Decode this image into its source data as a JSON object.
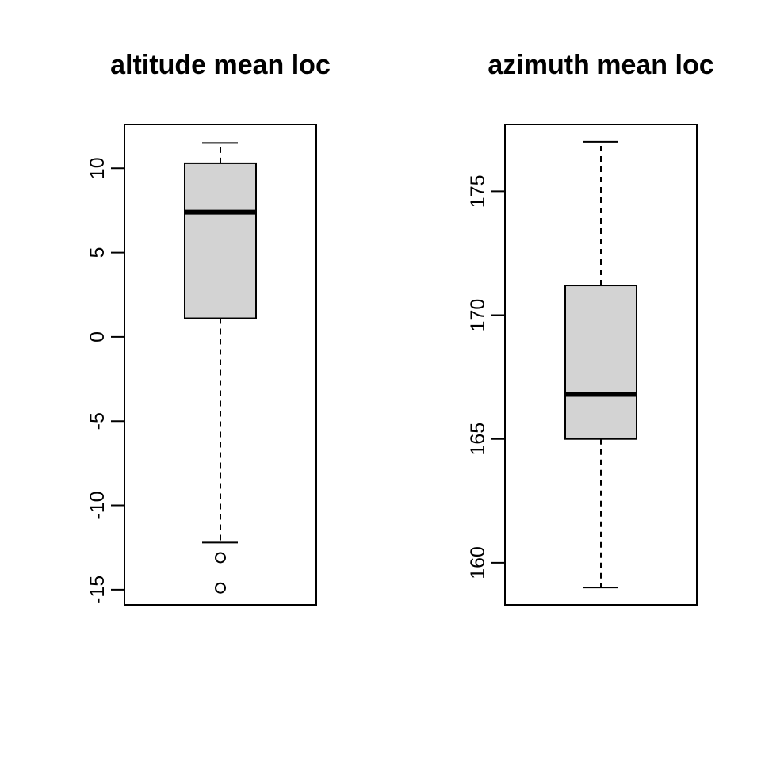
{
  "colors": {
    "box_fill": "#d3d3d3",
    "stroke": "#000000",
    "background": "#ffffff"
  },
  "chart_data": [
    {
      "type": "boxplot",
      "title": "altitude mean loc",
      "xlabel": "",
      "ylabel": "",
      "ylim": [
        -15.9,
        12.6
      ],
      "yticks": [
        -15,
        -10,
        -5,
        0,
        5,
        10
      ],
      "ytick_labels": [
        "-15",
        "-10",
        "-5",
        "0",
        "5",
        "10"
      ],
      "stats": {
        "whisker_low": -12.2,
        "q1": 1.1,
        "median": 7.4,
        "q3": 10.3,
        "whisker_high": 11.5
      },
      "outliers": [
        -13.1,
        -14.9
      ]
    },
    {
      "type": "boxplot",
      "title": "azimuth mean loc",
      "xlabel": "",
      "ylabel": "",
      "ylim": [
        158.3,
        177.7
      ],
      "yticks": [
        160,
        165,
        170,
        175
      ],
      "ytick_labels": [
        "160",
        "165",
        "170",
        "175"
      ],
      "stats": {
        "whisker_low": 159.0,
        "q1": 165.0,
        "median": 166.8,
        "q3": 171.2,
        "whisker_high": 177.0
      },
      "outliers": []
    }
  ]
}
